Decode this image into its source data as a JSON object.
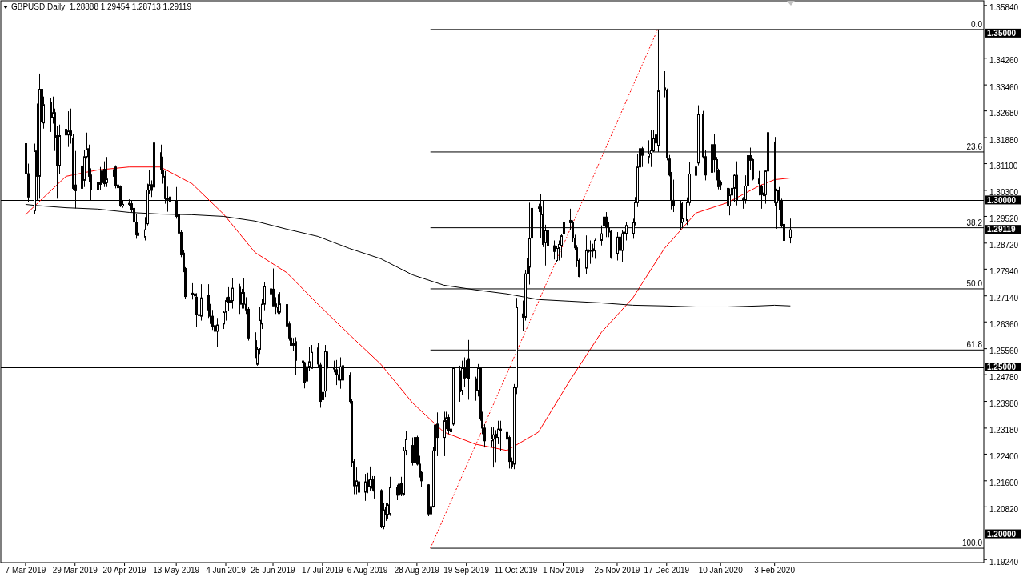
{
  "chart_data": {
    "type": "candlestick",
    "title": "GBPUSD,Daily  1.28888 1.29454 1.28713 1.29119",
    "legend": "right",
    "xlim": [
      "2019-02-24",
      "2020-05-06"
    ],
    "ylim": [
      1.1915,
      1.3598
    ],
    "xticks": [
      {
        "value": "2019-03-07",
        "label": "7 Mar 2019"
      },
      {
        "value": "2019-03-29",
        "label": "29 Mar 2019"
      },
      {
        "value": "2019-04-20",
        "label": "20 Apr 2019"
      },
      {
        "value": "2019-05-13",
        "label": "13 May 2019"
      },
      {
        "value": "2019-06-04",
        "label": "4 Jun 2019"
      },
      {
        "value": "2019-06-25",
        "label": "25 Jun 2019"
      },
      {
        "value": "2019-07-17",
        "label": "17 Jul 2019"
      },
      {
        "value": "2019-08-06",
        "label": "6 Aug 2019"
      },
      {
        "value": "2019-08-28",
        "label": "28 Aug 2019"
      },
      {
        "value": "2019-09-19",
        "label": "19 Sep 2019"
      },
      {
        "value": "2019-10-11",
        "label": "11 Oct 2019"
      },
      {
        "value": "2019-11-01",
        "label": "1 Nov 2019"
      },
      {
        "value": "2019-11-25",
        "label": "25 Nov 2019"
      },
      {
        "value": "2019-12-17",
        "label": "17 Dec 2019"
      },
      {
        "value": "2020-01-10",
        "label": "10 Jan 2020"
      },
      {
        "value": "2020-02-03",
        "label": "3 Feb 2020"
      }
    ],
    "yticks": [
      {
        "value": 1.3584,
        "label": "1.35840"
      },
      {
        "value": 1.3426,
        "label": "1.34260"
      },
      {
        "value": 1.3346,
        "label": "1.33460"
      },
      {
        "value": 1.3268,
        "label": "1.32680"
      },
      {
        "value": 1.3188,
        "label": "1.31880"
      },
      {
        "value": 1.311,
        "label": "1.31100"
      },
      {
        "value": 1.303,
        "label": "1.30300"
      },
      {
        "value": 1.2952,
        "label": "1.29520"
      },
      {
        "value": 1.2872,
        "label": "1.28720"
      },
      {
        "value": 1.2794,
        "label": "1.27940"
      },
      {
        "value": 1.2714,
        "label": "1.27140"
      },
      {
        "value": 1.2636,
        "label": "1.26360"
      },
      {
        "value": 1.2556,
        "label": "1.25560"
      },
      {
        "value": 1.2478,
        "label": "1.24780"
      },
      {
        "value": 1.2398,
        "label": "1.23980"
      },
      {
        "value": 1.2318,
        "label": "1.23180"
      },
      {
        "value": 1.224,
        "label": "1.22400"
      },
      {
        "value": 1.216,
        "label": "1.21600"
      },
      {
        "value": 1.2082,
        "label": "1.20820"
      },
      {
        "value": 1.1924,
        "label": "1.19240"
      }
    ],
    "ref_lines": [
      {
        "axis": "y",
        "value": 1.35,
        "label": "1.35000",
        "color": "#000000"
      },
      {
        "axis": "y",
        "value": 1.3,
        "label": "1.30000",
        "color": "#000000"
      },
      {
        "axis": "y",
        "value": 1.25,
        "label": "1.25000",
        "color": "#000000"
      },
      {
        "axis": "y",
        "value": 1.2,
        "label": "1.20000",
        "color": "#000000"
      },
      {
        "axis": "y",
        "value": 1.29119,
        "label": "1.29119",
        "color": "#c0c0c0"
      }
    ],
    "color": "#000000",
    "x": [
      "2019-03-07",
      "2019-03-08",
      "2019-03-11",
      "2019-03-12",
      "2019-03-13",
      "2019-03-14",
      "2019-03-15",
      "2019-03-18",
      "2019-03-19",
      "2019-03-20",
      "2019-03-21",
      "2019-03-22",
      "2019-03-25",
      "2019-03-26",
      "2019-03-27",
      "2019-03-28",
      "2019-03-29",
      "2019-04-01",
      "2019-04-02",
      "2019-04-03",
      "2019-04-04",
      "2019-04-05",
      "2019-04-08",
      "2019-04-09",
      "2019-04-10",
      "2019-04-11",
      "2019-04-12",
      "2019-04-15",
      "2019-04-16",
      "2019-04-17",
      "2019-04-18",
      "2019-04-19",
      "2019-04-22",
      "2019-04-23",
      "2019-04-24",
      "2019-04-25",
      "2019-04-26",
      "2019-04-29",
      "2019-04-30",
      "2019-05-01",
      "2019-05-02",
      "2019-05-03",
      "2019-05-06",
      "2019-05-07",
      "2019-05-08",
      "2019-05-09",
      "2019-05-10",
      "2019-05-13",
      "2019-05-14",
      "2019-05-15",
      "2019-05-16",
      "2019-05-17",
      "2019-05-20",
      "2019-05-21",
      "2019-05-22",
      "2019-05-23",
      "2019-05-24",
      "2019-05-27",
      "2019-05-28",
      "2019-05-29",
      "2019-05-30",
      "2019-05-31",
      "2019-06-03",
      "2019-06-04",
      "2019-06-05",
      "2019-06-06",
      "2019-06-07",
      "2019-06-10",
      "2019-06-11",
      "2019-06-12",
      "2019-06-13",
      "2019-06-14",
      "2019-06-17",
      "2019-06-18",
      "2019-06-19",
      "2019-06-20",
      "2019-06-21",
      "2019-06-24",
      "2019-06-25",
      "2019-06-26",
      "2019-06-27",
      "2019-06-28",
      "2019-07-01",
      "2019-07-02",
      "2019-07-03",
      "2019-07-04",
      "2019-07-05",
      "2019-07-08",
      "2019-07-09",
      "2019-07-10",
      "2019-07-11",
      "2019-07-12",
      "2019-07-15",
      "2019-07-16",
      "2019-07-17",
      "2019-07-18",
      "2019-07-19",
      "2019-07-22",
      "2019-07-23",
      "2019-07-24",
      "2019-07-25",
      "2019-07-26",
      "2019-07-29",
      "2019-07-30",
      "2019-07-31",
      "2019-08-01",
      "2019-08-02",
      "2019-08-05",
      "2019-08-06",
      "2019-08-07",
      "2019-08-08",
      "2019-08-09",
      "2019-08-12",
      "2019-08-13",
      "2019-08-14",
      "2019-08-15",
      "2019-08-16",
      "2019-08-19",
      "2019-08-20",
      "2019-08-21",
      "2019-08-22",
      "2019-08-23",
      "2019-08-26",
      "2019-08-27",
      "2019-08-28",
      "2019-08-29",
      "2019-08-30",
      "2019-09-02",
      "2019-09-03",
      "2019-09-04",
      "2019-09-05",
      "2019-09-06",
      "2019-09-09",
      "2019-09-10",
      "2019-09-11",
      "2019-09-12",
      "2019-09-13",
      "2019-09-16",
      "2019-09-17",
      "2019-09-18",
      "2019-09-19",
      "2019-09-20",
      "2019-09-23",
      "2019-09-24",
      "2019-09-25",
      "2019-09-26",
      "2019-09-27",
      "2019-09-30",
      "2019-10-01",
      "2019-10-02",
      "2019-10-03",
      "2019-10-04",
      "2019-10-07",
      "2019-10-08",
      "2019-10-09",
      "2019-10-10",
      "2019-10-11",
      "2019-10-14",
      "2019-10-15",
      "2019-10-16",
      "2019-10-17",
      "2019-10-18",
      "2019-10-21",
      "2019-10-22",
      "2019-10-23",
      "2019-10-24",
      "2019-10-25",
      "2019-10-28",
      "2019-10-29",
      "2019-10-30",
      "2019-10-31",
      "2019-11-01",
      "2019-11-04",
      "2019-11-05",
      "2019-11-06",
      "2019-11-07",
      "2019-11-08",
      "2019-11-11",
      "2019-11-12",
      "2019-11-13",
      "2019-11-14",
      "2019-11-15",
      "2019-11-18",
      "2019-11-19",
      "2019-11-20",
      "2019-11-21",
      "2019-11-22",
      "2019-11-25",
      "2019-11-26",
      "2019-11-27",
      "2019-11-28",
      "2019-11-29",
      "2019-12-02",
      "2019-12-03",
      "2019-12-04",
      "2019-12-05",
      "2019-12-06",
      "2019-12-09",
      "2019-12-10",
      "2019-12-11",
      "2019-12-12",
      "2019-12-13",
      "2019-12-16",
      "2019-12-17",
      "2019-12-18",
      "2019-12-19",
      "2019-12-20",
      "2019-12-23",
      "2019-12-24",
      "2019-12-26",
      "2019-12-27",
      "2019-12-30",
      "2019-12-31",
      "2020-01-02",
      "2020-01-03",
      "2020-01-06",
      "2020-01-07",
      "2020-01-08",
      "2020-01-09",
      "2020-01-10",
      "2020-01-13",
      "2020-01-14",
      "2020-01-15",
      "2020-01-16",
      "2020-01-17",
      "2020-01-20",
      "2020-01-21",
      "2020-01-22",
      "2020-01-23",
      "2020-01-24",
      "2020-01-27",
      "2020-01-28",
      "2020-01-29",
      "2020-01-30",
      "2020-01-31",
      "2020-02-03",
      "2020-02-04",
      "2020-02-05",
      "2020-02-06",
      "2020-02-07",
      "2020-02-10"
    ],
    "ohlc": [
      [
        1.317,
        1.319,
        1.306,
        1.308
      ],
      [
        1.308,
        1.311,
        1.2995,
        1.301
      ],
      [
        1.2969,
        1.317,
        1.296,
        1.3148
      ],
      [
        1.3148,
        1.329,
        1.3,
        1.3072
      ],
      [
        1.3072,
        1.338,
        1.3005,
        1.3333
      ],
      [
        1.3333,
        1.3345,
        1.32,
        1.3237
      ],
      [
        1.3232,
        1.3311,
        1.3215,
        1.3287
      ],
      [
        1.3294,
        1.3306,
        1.3205,
        1.3249
      ],
      [
        1.3249,
        1.3311,
        1.323,
        1.3263
      ],
      [
        1.3263,
        1.3275,
        1.3148,
        1.3189
      ],
      [
        1.3194,
        1.3222,
        1.3005,
        1.3103
      ],
      [
        1.3103,
        1.3227,
        1.3079,
        1.3194
      ],
      [
        1.3213,
        1.3251,
        1.316,
        1.3196
      ],
      [
        1.3196,
        1.3267,
        1.316,
        1.3208
      ],
      [
        1.3208,
        1.3275,
        1.317,
        1.3194
      ],
      [
        1.3187,
        1.32,
        1.3032,
        1.3036
      ],
      [
        1.3046,
        1.3148,
        1.2976,
        1.3029
      ],
      [
        1.3036,
        1.3143,
        1.3,
        1.3103
      ],
      [
        1.306,
        1.315,
        1.304,
        1.3131
      ],
      [
        1.3131,
        1.3203,
        1.3125,
        1.3155
      ],
      [
        1.3155,
        1.3167,
        1.3055,
        1.3072
      ],
      [
        1.3076,
        1.3096,
        1.2999,
        1.3031
      ],
      [
        1.3031,
        1.3117,
        1.3026,
        1.3053
      ],
      [
        1.3053,
        1.31,
        1.303,
        1.3048
      ],
      [
        1.3053,
        1.3115,
        1.304,
        1.3088
      ],
      [
        1.3093,
        1.3117,
        1.304,
        1.305
      ],
      [
        1.3053,
        1.313,
        1.304,
        1.3064
      ],
      [
        1.3072,
        1.3115,
        1.3064,
        1.3092
      ],
      [
        1.31,
        1.3105,
        1.3036,
        1.3043
      ],
      [
        1.3046,
        1.3072,
        1.303,
        1.3038
      ],
      [
        1.3041,
        1.3045,
        1.298,
        1.2983
      ],
      [
        1.2983,
        1.3,
        1.2978,
        1.2988
      ],
      [
        1.2988,
        1.3003,
        1.2982,
        1.2991
      ],
      [
        1.299,
        1.3,
        1.2965,
        1.2972
      ],
      [
        1.2976,
        1.3019,
        1.2928,
        1.2935
      ],
      [
        1.2935,
        1.296,
        1.2885,
        1.2897
      ],
      [
        1.2902,
        1.2926,
        1.2867,
        1.2895
      ],
      [
        1.289,
        1.295,
        1.288,
        1.2912
      ],
      [
        1.293,
        1.305,
        1.2925,
        1.3031
      ],
      [
        1.3031,
        1.309,
        1.302,
        1.3047
      ],
      [
        1.3047,
        1.306,
        1.301,
        1.303
      ],
      [
        1.304,
        1.318,
        1.302,
        1.3172
      ],
      [
        1.3143,
        1.3167,
        1.3079,
        1.3091
      ],
      [
        1.3091,
        1.3131,
        1.305,
        1.307
      ],
      [
        1.3072,
        1.3088,
        1.299,
        1.3005
      ],
      [
        1.3005,
        1.3041,
        1.2966,
        1.3003
      ],
      [
        1.301,
        1.304,
        1.297,
        1.2995
      ],
      [
        1.2998,
        1.304,
        1.2945,
        1.2952
      ],
      [
        1.2957,
        1.2965,
        1.2895,
        1.2902
      ],
      [
        1.2904,
        1.2912,
        1.283,
        1.2837
      ],
      [
        1.2842,
        1.285,
        1.2785,
        1.2791
      ],
      [
        1.2796,
        1.28,
        1.2705,
        1.2712
      ],
      [
        1.2722,
        1.2752,
        1.2703,
        1.2717
      ],
      [
        1.272,
        1.2813,
        1.2684,
        1.2714
      ],
      [
        1.271,
        1.2722,
        1.2622,
        1.2658
      ],
      [
        1.2658,
        1.2707,
        1.2605,
        1.2655
      ],
      [
        1.2653,
        1.2749,
        1.264,
        1.2708
      ],
      [
        1.2716,
        1.2749,
        1.2648,
        1.2672
      ],
      [
        1.2672,
        1.269,
        1.263,
        1.2653
      ],
      [
        1.2653,
        1.2672,
        1.2612,
        1.2622
      ],
      [
        1.2625,
        1.2648,
        1.2576,
        1.2608
      ],
      [
        1.2608,
        1.2648,
        1.256,
        1.2627
      ],
      [
        1.263,
        1.267,
        1.2615,
        1.2665
      ],
      [
        1.2665,
        1.271,
        1.264,
        1.27
      ],
      [
        1.271,
        1.274,
        1.2668,
        1.2693
      ],
      [
        1.2693,
        1.2715,
        1.2676,
        1.27
      ],
      [
        1.27,
        1.2768,
        1.2676,
        1.2737
      ],
      [
        1.274,
        1.275,
        1.266,
        1.2689
      ],
      [
        1.2689,
        1.2735,
        1.2676,
        1.2724
      ],
      [
        1.2724,
        1.2766,
        1.2676,
        1.2689
      ],
      [
        1.2689,
        1.271,
        1.266,
        1.2672
      ],
      [
        1.2674,
        1.268,
        1.258,
        1.2588
      ],
      [
        1.258,
        1.2605,
        1.2528,
        1.253
      ],
      [
        1.2509,
        1.256,
        1.2505,
        1.2554
      ],
      [
        1.2554,
        1.268,
        1.254,
        1.2641
      ],
      [
        1.263,
        1.2705,
        1.2615,
        1.2689
      ],
      [
        1.2689,
        1.2756,
        1.2671,
        1.2741
      ],
      [
        1.272,
        1.2783,
        1.2695,
        1.2735
      ],
      [
        1.2734,
        1.2796,
        1.2684,
        1.2684
      ],
      [
        1.269,
        1.271,
        1.266,
        1.268
      ],
      [
        1.268,
        1.272,
        1.266,
        1.2665
      ],
      [
        1.2665,
        1.2725,
        1.266,
        1.269
      ],
      [
        1.2688,
        1.2692,
        1.2617,
        1.2624
      ],
      [
        1.263,
        1.2638,
        1.258,
        1.2588
      ],
      [
        1.2588,
        1.2598,
        1.256,
        1.2566
      ],
      [
        1.2566,
        1.2588,
        1.255,
        1.2572
      ],
      [
        1.2577,
        1.259,
        1.2478,
        1.2521
      ],
      [
        1.2519,
        1.2545,
        1.249,
        1.2514
      ],
      [
        1.2514,
        1.2517,
        1.2437,
        1.2455
      ],
      [
        1.2459,
        1.2513,
        1.2445,
        1.2502
      ],
      [
        1.2502,
        1.256,
        1.249,
        1.2517
      ],
      [
        1.2497,
        1.2567,
        1.2497,
        1.2545
      ],
      [
        1.2558,
        1.2572,
        1.2498,
        1.251
      ],
      [
        1.2507,
        1.2515,
        1.2379,
        1.2398
      ],
      [
        1.2403,
        1.2441,
        1.2367,
        1.2425
      ],
      [
        1.2429,
        1.2567,
        1.2411,
        1.2547
      ],
      [
        1.2546,
        1.2567,
        1.2467,
        1.2498
      ],
      [
        1.2495,
        1.252,
        1.2485,
        1.2498
      ],
      [
        1.2493,
        1.2522,
        1.2447,
        1.2478
      ],
      [
        1.2478,
        1.2486,
        1.2426,
        1.2462
      ],
      [
        1.2462,
        1.253,
        1.2436,
        1.2502
      ],
      [
        1.2505,
        1.253,
        1.244,
        1.2462
      ],
      [
        1.2477,
        1.2485,
        1.2391,
        1.2398
      ],
      [
        1.2398,
        1.2405,
        1.2202,
        1.2215
      ],
      [
        1.2218,
        1.2225,
        1.212,
        1.2145
      ],
      [
        1.2145,
        1.22,
        1.212,
        1.216
      ],
      [
        1.2157,
        1.2174,
        1.2112,
        1.2126
      ],
      [
        1.2126,
        1.2181,
        1.21,
        1.2157
      ],
      [
        1.2162,
        1.2184,
        1.2123,
        1.2143
      ],
      [
        1.2143,
        1.2203,
        1.2131,
        1.2165
      ],
      [
        1.2165,
        1.2174,
        1.2131,
        1.2138
      ],
      [
        1.214,
        1.2174,
        1.2107,
        1.2129
      ],
      [
        1.2131,
        1.2135,
        1.2018,
        1.2023
      ],
      [
        1.2023,
        1.2094,
        1.2015,
        1.2073
      ],
      [
        1.208,
        1.2094,
        1.204,
        1.2058
      ],
      [
        1.2058,
        1.2094,
        1.2047,
        1.2088
      ],
      [
        1.2061,
        1.2172,
        1.2055,
        1.2141
      ],
      [
        1.2141,
        1.2148,
        1.2102,
        1.2117
      ],
      [
        1.2117,
        1.2172,
        1.2066,
        1.215
      ],
      [
        1.2152,
        1.2172,
        1.2114,
        1.2121
      ],
      [
        1.212,
        1.2262,
        1.2115,
        1.225
      ],
      [
        1.225,
        1.231,
        1.2236,
        1.2284
      ],
      [
        1.2266,
        1.229,
        1.2206,
        1.2215
      ],
      [
        1.2215,
        1.231,
        1.2206,
        1.229
      ],
      [
        1.229,
        1.2295,
        1.2206,
        1.221
      ],
      [
        1.221,
        1.2235,
        1.217,
        1.218
      ],
      [
        1.2185,
        1.219,
        1.2142,
        1.216
      ],
      [
        1.2148,
        1.215,
        1.2054,
        1.2061
      ],
      [
        1.2061,
        1.209,
        1.1958,
        1.2083
      ],
      [
        1.2083,
        1.2262,
        1.208,
        1.225
      ],
      [
        1.225,
        1.2354,
        1.2238,
        1.2327
      ],
      [
        1.233,
        1.2365,
        1.2234,
        1.229
      ],
      [
        1.229,
        1.2367,
        1.2234,
        1.234
      ],
      [
        1.234,
        1.2367,
        1.2315,
        1.2349
      ],
      [
        1.235,
        1.236,
        1.23,
        1.231
      ],
      [
        1.2307,
        1.236,
        1.2272,
        1.2315
      ],
      [
        1.233,
        1.25,
        1.2325,
        1.2497
      ],
      [
        1.249,
        1.2505,
        1.2397,
        1.2427
      ],
      [
        1.243,
        1.252,
        1.2417,
        1.2497
      ],
      [
        1.2497,
        1.253,
        1.244,
        1.2468
      ],
      [
        1.247,
        1.256,
        1.245,
        1.252
      ],
      [
        1.2526,
        1.2582,
        1.2403,
        1.2466
      ],
      [
        1.2466,
        1.2472,
        1.24,
        1.243
      ],
      [
        1.243,
        1.251,
        1.2413,
        1.2498
      ],
      [
        1.2498,
        1.25,
        1.234,
        1.2346
      ],
      [
        1.2346,
        1.2367,
        1.23,
        1.2318
      ],
      [
        1.2318,
        1.233,
        1.226,
        1.228
      ],
      [
        1.228,
        1.232,
        1.226,
        1.229
      ],
      [
        1.2285,
        1.232,
        1.22,
        1.2298
      ],
      [
        1.23,
        1.2312,
        1.2216,
        1.229
      ],
      [
        1.229,
        1.234,
        1.227,
        1.2315
      ],
      [
        1.2315,
        1.234,
        1.225,
        1.231
      ],
      [
        1.2305,
        1.231,
        1.226,
        1.2285
      ],
      [
        1.229,
        1.2295,
        1.2197,
        1.2218
      ],
      [
        1.2218,
        1.223,
        1.2196,
        1.2203
      ],
      [
        1.221,
        1.245,
        1.2195,
        1.244
      ],
      [
        1.244,
        1.2708,
        1.242,
        1.268
      ],
      [
        1.266,
        1.27,
        1.2608,
        1.265
      ],
      [
        1.265,
        1.279,
        1.264,
        1.278
      ],
      [
        1.278,
        1.284,
        1.274,
        1.2827
      ],
      [
        1.28,
        1.2993,
        1.2748,
        1.2887
      ],
      [
        1.2887,
        1.299,
        1.288,
        1.2976
      ],
      [
        1.2976,
        1.299,
        1.2965,
        1.298
      ],
      [
        1.298,
        1.3018,
        1.2887,
        1.2957
      ],
      [
        1.2957,
        1.3,
        1.286,
        1.2868
      ],
      [
        1.2873,
        1.2927,
        1.2805,
        1.2911
      ],
      [
        1.291,
        1.295,
        1.28,
        1.2864
      ],
      [
        1.2864,
        1.288,
        1.2823,
        1.2847
      ],
      [
        1.282,
        1.2863,
        1.2816,
        1.2856
      ],
      [
        1.2856,
        1.288,
        1.282,
        1.2868
      ],
      [
        1.2864,
        1.29,
        1.2829,
        1.2894
      ],
      [
        1.29,
        1.2975,
        1.2895,
        1.2935
      ],
      [
        1.294,
        1.2975,
        1.291,
        1.2933
      ],
      [
        1.2933,
        1.294,
        1.2875,
        1.2887
      ],
      [
        1.2887,
        1.2897,
        1.285,
        1.2858
      ],
      [
        1.2858,
        1.2866,
        1.28,
        1.282
      ],
      [
        1.282,
        1.2825,
        1.277,
        1.2772
      ],
      [
        1.2797,
        1.2895,
        1.278,
        1.285
      ],
      [
        1.2852,
        1.2875,
        1.2815,
        1.2845
      ],
      [
        1.2848,
        1.288,
        1.281,
        1.285
      ],
      [
        1.2855,
        1.287,
        1.283,
        1.2848
      ],
      [
        1.2849,
        1.2885,
        1.2825,
        1.288
      ],
      [
        1.288,
        1.2925,
        1.2865,
        1.29
      ],
      [
        1.2923,
        1.2985,
        1.2913,
        1.295
      ],
      [
        1.295,
        1.2965,
        1.289,
        1.292
      ],
      [
        1.2918,
        1.2935,
        1.289,
        1.2905
      ],
      [
        1.2907,
        1.2912,
        1.2825,
        1.283
      ],
      [
        1.284,
        1.2905,
        1.282,
        1.289
      ],
      [
        1.289,
        1.291,
        1.2815,
        1.285
      ],
      [
        1.285,
        1.2912,
        1.2815,
        1.29
      ],
      [
        1.2905,
        1.2935,
        1.2885,
        1.29
      ],
      [
        1.29,
        1.2935,
        1.288,
        1.2925
      ],
      [
        1.29,
        1.2945,
        1.2885,
        1.2935
      ],
      [
        1.2932,
        1.301,
        1.2925,
        1.2993
      ],
      [
        1.2993,
        1.3138,
        1.298,
        1.31
      ],
      [
        1.31,
        1.316,
        1.31,
        1.3155
      ],
      [
        1.3155,
        1.316,
        1.31,
        1.3135
      ],
      [
        1.313,
        1.318,
        1.311,
        1.314
      ],
      [
        1.314,
        1.321,
        1.31,
        1.315
      ],
      [
        1.3148,
        1.321,
        1.3145,
        1.3185
      ],
      [
        1.3196,
        1.3224,
        1.3105,
        1.3172
      ],
      [
        1.3163,
        1.3512,
        1.3145,
        1.3328
      ],
      [
        1.3337,
        1.3387,
        1.3309,
        1.333
      ],
      [
        1.333,
        1.3335,
        1.312,
        1.3127
      ],
      [
        1.3124,
        1.3136,
        1.3072,
        1.3076
      ],
      [
        1.3079,
        1.3085,
        1.2973,
        1.3
      ],
      [
        1.3,
        1.3062,
        1.2965,
        1.2985
      ],
      [
        1.299,
        1.3,
        1.291,
        1.2933
      ],
      [
        1.2935,
        1.2995,
        1.2917,
        1.2945
      ],
      [
        1.294,
        1.3009,
        1.2926,
        1.2993
      ],
      [
        1.2993,
        1.3114,
        1.2985,
        1.3079
      ],
      [
        1.3075,
        1.3114,
        1.306,
        1.31
      ],
      [
        1.3112,
        1.3285,
        1.3105,
        1.3258
      ],
      [
        1.3258,
        1.3268,
        1.3125,
        1.3131
      ],
      [
        1.3131,
        1.315,
        1.306,
        1.3076
      ],
      [
        1.3084,
        1.3175,
        1.3065,
        1.3167
      ],
      [
        1.3167,
        1.32,
        1.3084,
        1.3122
      ],
      [
        1.3122,
        1.313,
        1.306,
        1.3095
      ],
      [
        1.3091,
        1.3095,
        1.3033,
        1.3041
      ],
      [
        1.3055,
        1.306,
        1.303,
        1.3047
      ],
      [
        1.3036,
        1.304,
        1.296,
        1.2983
      ],
      [
        1.2983,
        1.3036,
        1.2955,
        1.3016
      ],
      [
        1.3016,
        1.304,
        1.301,
        1.3036
      ],
      [
        1.3036,
        1.3079,
        1.2995,
        1.3075
      ],
      [
        1.3075,
        1.3117,
        1.2985,
        1.3002
      ],
      [
        1.3002,
        1.301,
        1.2975,
        1.3004
      ],
      [
        1.3002,
        1.3075,
        1.299,
        1.3043
      ],
      [
        1.3043,
        1.3146,
        1.3038,
        1.3134
      ],
      [
        1.3134,
        1.3158,
        1.309,
        1.312
      ],
      [
        1.3122,
        1.3125,
        1.306,
        1.3064
      ],
      [
        1.3064,
        1.3088,
        1.3015,
        1.305
      ],
      [
        1.3043,
        1.3047,
        1.2975,
        1.3017
      ],
      [
        1.3022,
        1.304,
        1.3005,
        1.3014
      ],
      [
        1.3017,
        1.309,
        1.299,
        1.3088
      ],
      [
        1.3088,
        1.3207,
        1.3085,
        1.3203
      ],
      [
        1.3175,
        1.319,
        1.2983,
        1.2993
      ],
      [
        1.2993,
        1.3035,
        1.2915,
        1.3029
      ],
      [
        1.3029,
        1.304,
        1.297,
        1.3
      ],
      [
        1.3,
        1.3005,
        1.2918,
        1.2923
      ],
      [
        1.2928,
        1.294,
        1.287,
        1.288
      ],
      [
        1.28888,
        1.29454,
        1.28713,
        1.29119
      ]
    ],
    "series": [
      {
        "type": "line",
        "color": "#ff0000",
        "x": [
          "2019-03-07",
          "2019-03-11",
          "2019-03-25",
          "2019-04-08",
          "2019-04-22",
          "2019-05-06",
          "2019-05-20",
          "2019-06-03",
          "2019-06-17",
          "2019-07-01",
          "2019-07-15",
          "2019-07-29",
          "2019-08-12",
          "2019-08-26",
          "2019-09-09",
          "2019-09-23",
          "2019-10-07",
          "2019-10-21",
          "2019-11-04",
          "2019-11-18",
          "2019-12-02",
          "2019-12-16",
          "2019-12-30",
          "2020-01-13",
          "2020-01-27",
          "2020-02-03",
          "2020-02-10"
        ],
        "values": [
          1.2957,
          1.2983,
          1.3072,
          1.3091,
          1.31,
          1.31,
          1.305,
          1.2959,
          1.2844,
          1.2784,
          1.2689,
          1.2598,
          1.2509,
          1.2394,
          1.2306,
          1.227,
          1.2251,
          1.2306,
          1.2461,
          1.2605,
          1.2708,
          1.2856,
          1.2962,
          1.2993,
          1.3043,
          1.3062,
          1.3067
        ]
      },
      {
        "type": "line",
        "color": "#000000",
        "x": [
          "2019-03-07",
          "2019-03-11",
          "2019-03-25",
          "2019-04-08",
          "2019-04-22",
          "2019-05-06",
          "2019-05-20",
          "2019-06-03",
          "2019-06-17",
          "2019-07-01",
          "2019-07-15",
          "2019-07-29",
          "2019-08-12",
          "2019-08-26",
          "2019-09-09",
          "2019-09-23",
          "2019-10-07",
          "2019-10-21",
          "2019-11-04",
          "2019-11-18",
          "2019-12-02",
          "2019-12-16",
          "2019-12-30",
          "2020-01-13",
          "2020-01-27",
          "2020-02-03",
          "2020-02-10"
        ],
        "values": [
          1.2988,
          1.2985,
          1.2978,
          1.2974,
          1.2964,
          1.2959,
          1.2957,
          1.2952,
          1.2938,
          1.2914,
          1.2892,
          1.2856,
          1.2825,
          1.2777,
          1.2746,
          1.2732,
          1.272,
          1.2703,
          1.2698,
          1.2693,
          1.2686,
          1.2684,
          1.2681,
          1.2681,
          1.2684,
          1.2686,
          1.2684
        ]
      },
      {
        "type": "line",
        "color": "#000000",
        "name": "0.0",
        "x": [
          "2019-09-03",
          "2020-05-06"
        ],
        "values": [
          1.3512,
          1.3512
        ]
      },
      {
        "type": "line",
        "color": "#000000",
        "name": "23.6",
        "x": [
          "2019-09-03",
          "2020-05-06"
        ],
        "values": [
          1.3145,
          1.3145
        ]
      },
      {
        "type": "line",
        "color": "#000000",
        "name": "38.2",
        "x": [
          "2019-09-03",
          "2020-05-06"
        ],
        "values": [
          1.2918,
          1.2918
        ]
      },
      {
        "type": "line",
        "color": "#000000",
        "name": "50.0",
        "x": [
          "2019-09-03",
          "2020-05-06"
        ],
        "values": [
          1.2735,
          1.2735
        ]
      },
      {
        "type": "line",
        "color": "#000000",
        "name": "61.8",
        "x": [
          "2019-09-03",
          "2020-05-06"
        ],
        "values": [
          1.2552,
          1.2552
        ]
      },
      {
        "type": "line",
        "color": "#000000",
        "name": "100.0",
        "x": [
          "2019-09-03",
          "2020-05-06"
        ],
        "values": [
          1.1958,
          1.1958
        ]
      },
      {
        "type": "line",
        "color": "#ff0000",
        "line_style": "dotted",
        "x": [
          "2019-09-03",
          "2019-12-13"
        ],
        "values": [
          1.1958,
          1.3512
        ]
      }
    ]
  }
}
